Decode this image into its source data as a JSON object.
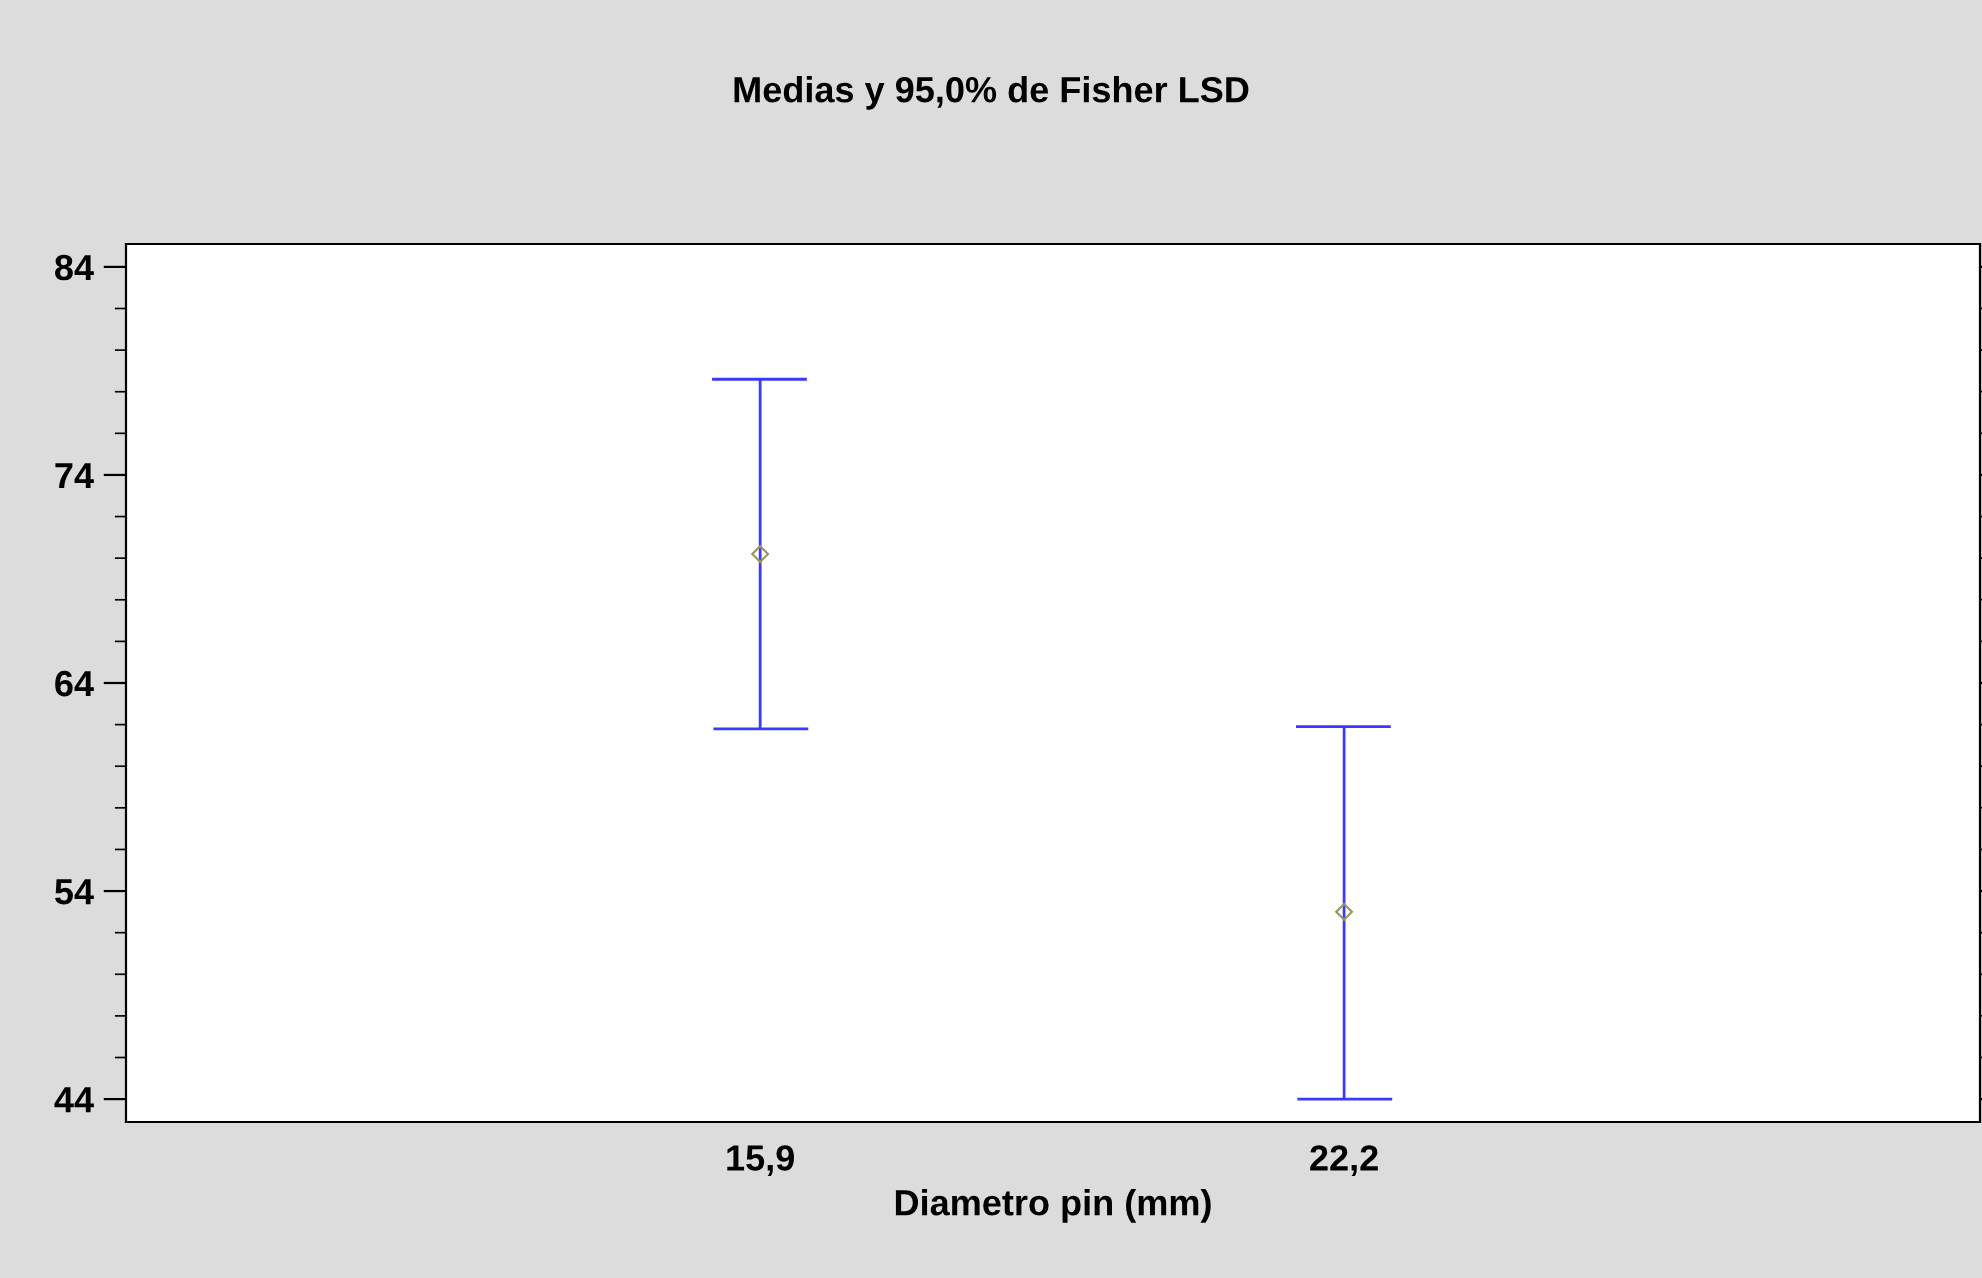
{
  "chart_data": {
    "type": "scatter",
    "title": "Medias y 95,0% de Fisher LSD",
    "xlabel": "Diametro pin (mm)",
    "categories": [
      "15,9",
      "22,2"
    ],
    "series": [
      {
        "color": "#3a3aff",
        "colors": [
          "#9a9a60",
          "#9a9a60"
        ],
        "values": [
          70.2,
          53.0
        ],
        "errors": [
          [
            61.8,
            78.6
          ],
          [
            44.0,
            61.9
          ]
        ]
      }
    ],
    "ylim": [
      42.9,
      85.1
    ],
    "yticks": [
      44,
      54,
      64,
      74,
      84
    ],
    "marker": "diamond",
    "grid": false,
    "legend": false
  }
}
